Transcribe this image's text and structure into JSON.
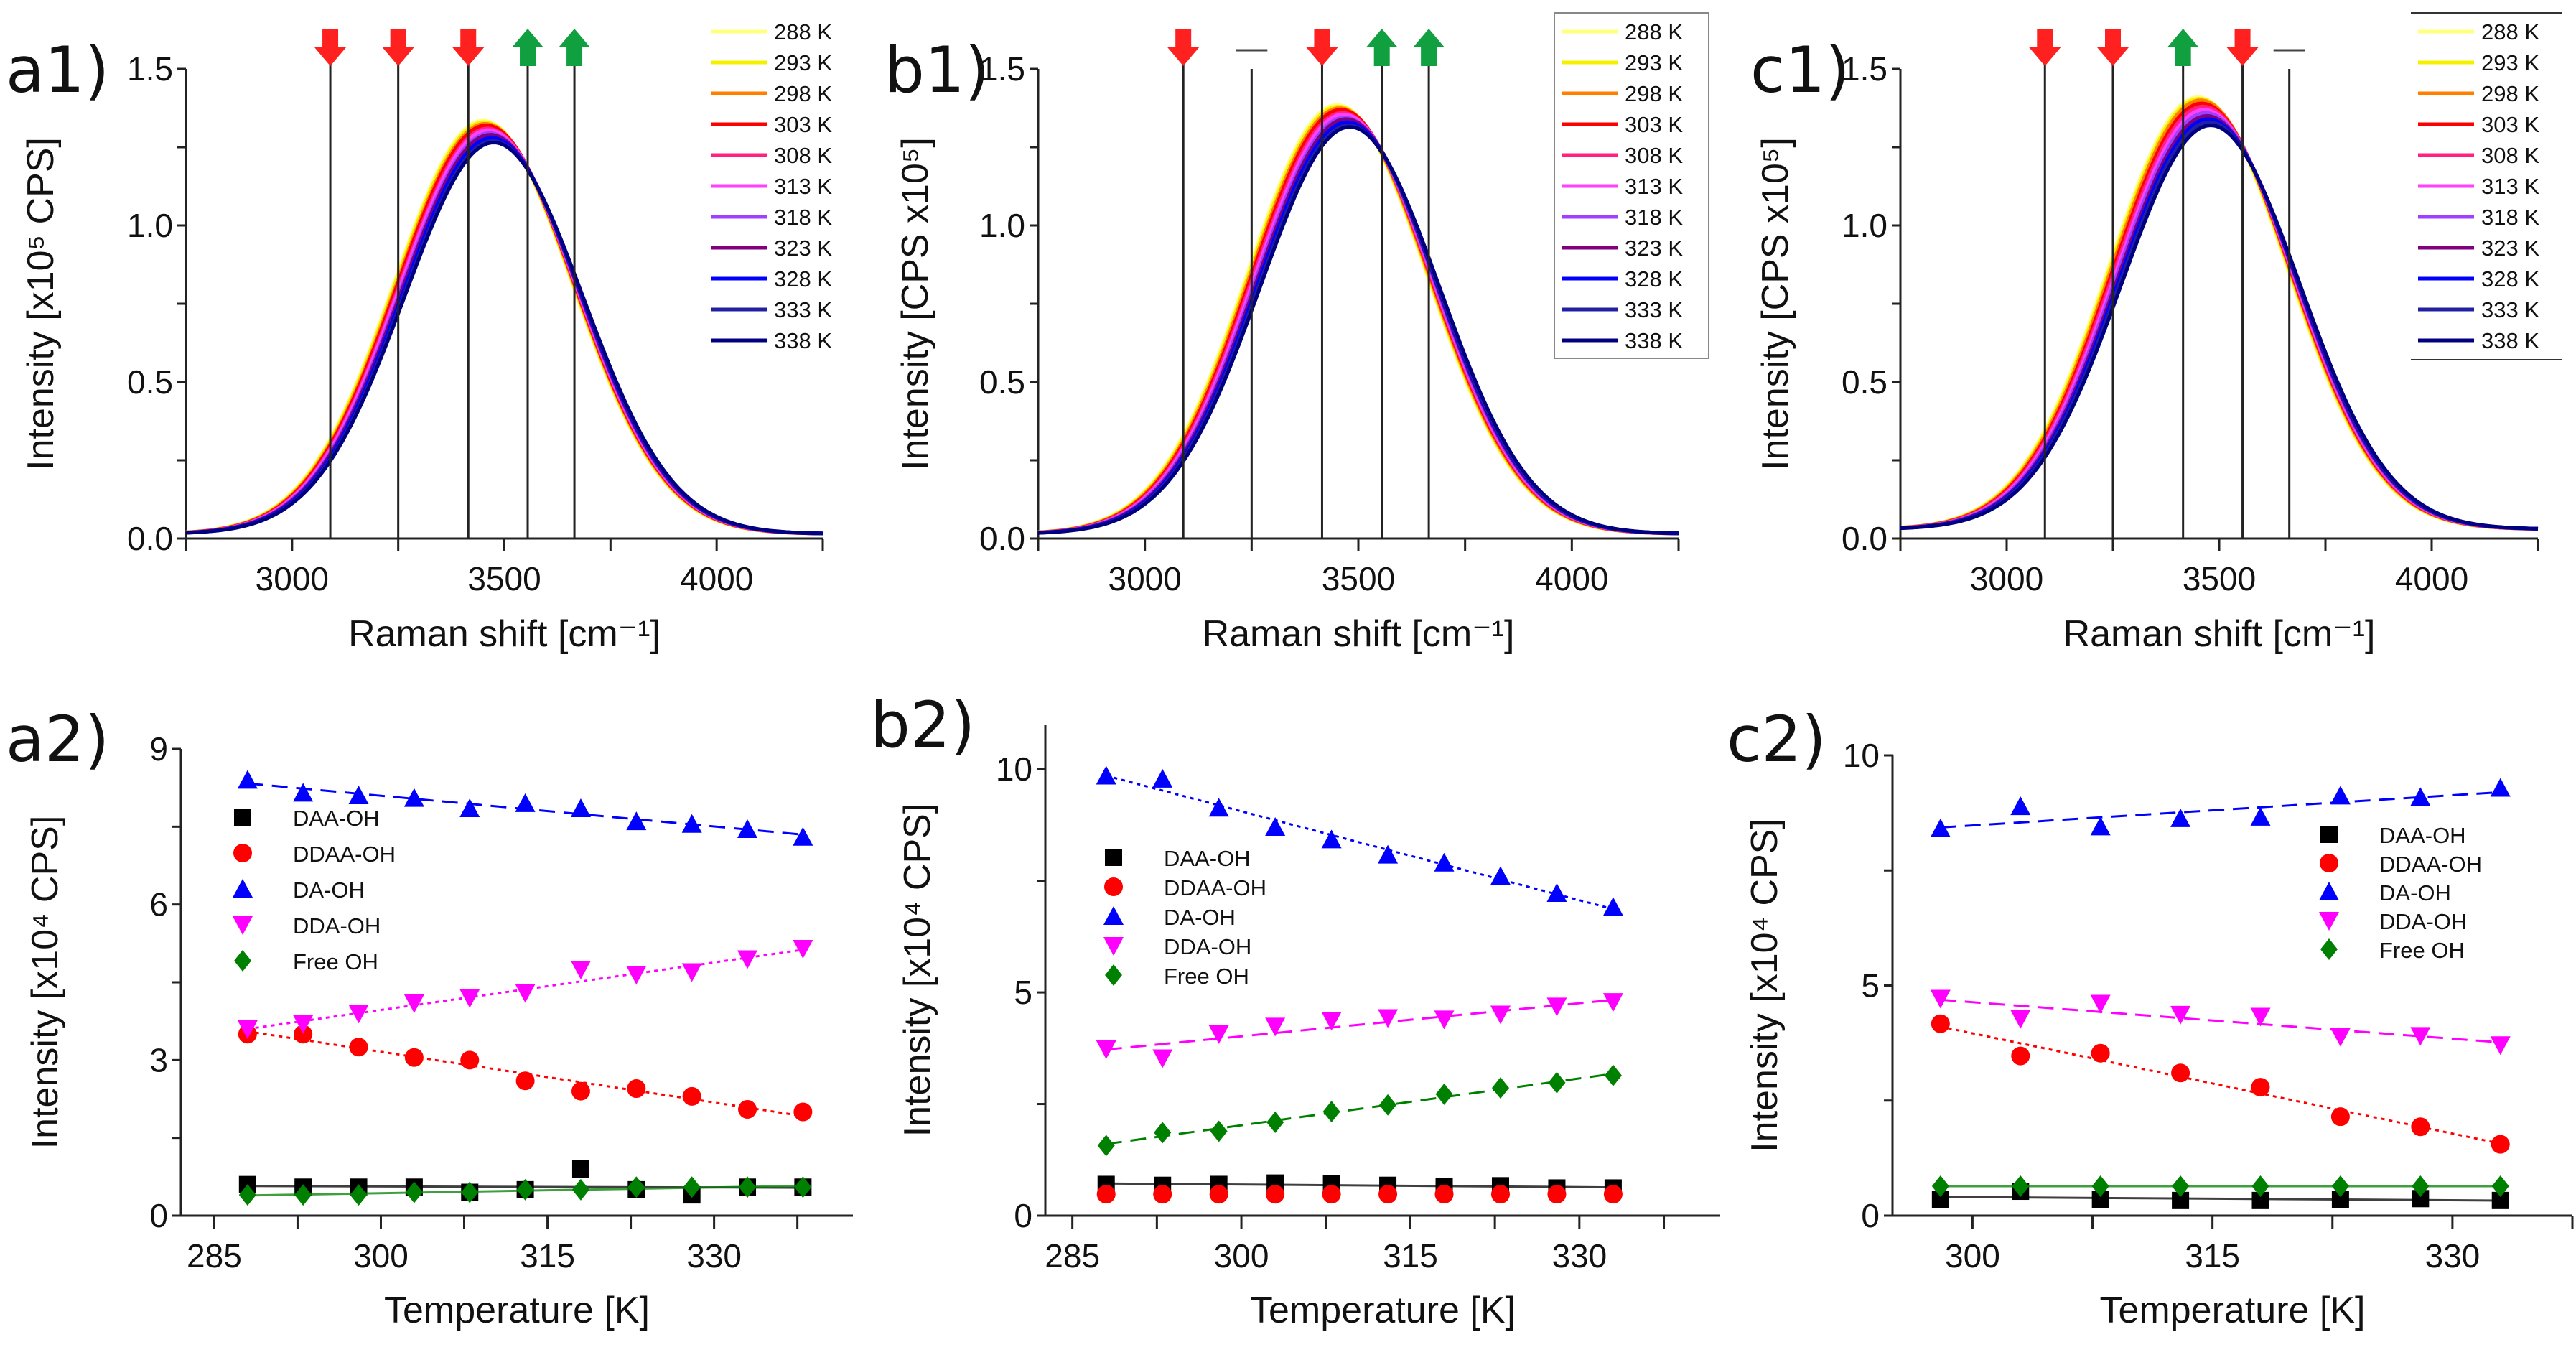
{
  "chart_data": [
    {
      "type": "line",
      "label": "a1)",
      "xlabel": "Raman shift [cm⁻¹]",
      "ylabel": "Intensity [x10⁵ CPS]",
      "xlim": [
        2750,
        4250
      ],
      "ylim": [
        0,
        1.5
      ],
      "xticks": [
        "3000",
        "3500",
        "4000"
      ],
      "yticks": [
        "0.0",
        "0.5",
        "1.0",
        "1.5"
      ],
      "legend_style": "none",
      "band_width": 210,
      "baseline": 0.015,
      "markers": [
        {
          "x": 3090,
          "dir": "down"
        },
        {
          "x": 3250,
          "dir": "down"
        },
        {
          "x": 3415,
          "dir": "down"
        },
        {
          "x": 3555,
          "dir": "up"
        },
        {
          "x": 3665,
          "dir": "up"
        }
      ],
      "series": [
        {
          "name": "288 K",
          "color": "#ffff80",
          "peak_intensity": 1.32,
          "peak_position": 3450
        },
        {
          "name": "293 K",
          "color": "#f5f000",
          "peak_intensity": 1.315,
          "peak_position": 3452
        },
        {
          "name": "298 K",
          "color": "#ff8000",
          "peak_intensity": 1.31,
          "peak_position": 3455
        },
        {
          "name": "303 K",
          "color": "#ff0000",
          "peak_intensity": 1.305,
          "peak_position": 3457
        },
        {
          "name": "308 K",
          "color": "#ff2080",
          "peak_intensity": 1.295,
          "peak_position": 3460
        },
        {
          "name": "313 K",
          "color": "#ff40ff",
          "peak_intensity": 1.29,
          "peak_position": 3462
        },
        {
          "name": "318 K",
          "color": "#a040ff",
          "peak_intensity": 1.28,
          "peak_position": 3465
        },
        {
          "name": "323 K",
          "color": "#800080",
          "peak_intensity": 1.275,
          "peak_position": 3467
        },
        {
          "name": "328 K",
          "color": "#0000ff",
          "peak_intensity": 1.265,
          "peak_position": 3470
        },
        {
          "name": "333 K",
          "color": "#2020a0",
          "peak_intensity": 1.255,
          "peak_position": 3473
        },
        {
          "name": "338 K",
          "color": "#000080",
          "peak_intensity": 1.25,
          "peak_position": 3475
        }
      ]
    },
    {
      "type": "line",
      "label": "b1)",
      "xlabel": "Raman shift [cm⁻¹]",
      "ylabel": "Intensity [CPS x10⁵]",
      "xlim": [
        2750,
        4250
      ],
      "ylim": [
        0,
        1.5
      ],
      "xticks": [
        "3000",
        "3500",
        "4000"
      ],
      "yticks": [
        "0.0",
        "0.5",
        "1.0",
        "1.5"
      ],
      "legend_style": "box",
      "band_width": 210,
      "baseline": 0.015,
      "markers": [
        {
          "x": 3090,
          "dir": "down"
        },
        {
          "x": 3250,
          "dir": "none"
        },
        {
          "x": 3415,
          "dir": "down"
        },
        {
          "x": 3555,
          "dir": "up"
        },
        {
          "x": 3665,
          "dir": "up"
        }
      ],
      "series": [
        {
          "name": "288 K",
          "color": "#ffff80",
          "peak_intensity": 1.37,
          "peak_position": 3450
        },
        {
          "name": "293 K",
          "color": "#f5f000",
          "peak_intensity": 1.365,
          "peak_position": 3453
        },
        {
          "name": "298 K",
          "color": "#ff8000",
          "peak_intensity": 1.36,
          "peak_position": 3456
        },
        {
          "name": "303 K",
          "color": "#ff0000",
          "peak_intensity": 1.355,
          "peak_position": 3459
        },
        {
          "name": "308 K",
          "color": "#ff2080",
          "peak_intensity": 1.345,
          "peak_position": 3462
        },
        {
          "name": "313 K",
          "color": "#ff40ff",
          "peak_intensity": 1.34,
          "peak_position": 3465
        },
        {
          "name": "318 K",
          "color": "#a040ff",
          "peak_intensity": 1.33,
          "peak_position": 3468
        },
        {
          "name": "323 K",
          "color": "#800080",
          "peak_intensity": 1.325,
          "peak_position": 3471
        },
        {
          "name": "328 K",
          "color": "#0000ff",
          "peak_intensity": 1.315,
          "peak_position": 3474
        },
        {
          "name": "333 K",
          "color": "#2020a0",
          "peak_intensity": 1.305,
          "peak_position": 3477
        },
        {
          "name": "338 K",
          "color": "#000080",
          "peak_intensity": 1.3,
          "peak_position": 3480
        }
      ]
    },
    {
      "type": "line",
      "label": "c1)",
      "xlabel": "Raman shift [cm⁻¹]",
      "ylabel": "Intensity [CPS x10⁵]",
      "xlim": [
        2750,
        4250
      ],
      "ylim": [
        0,
        1.5
      ],
      "xticks": [
        "3000",
        "3500",
        "4000"
      ],
      "yticks": [
        "0.0",
        "0.5",
        "1.0",
        "1.5"
      ],
      "legend_style": "rules",
      "band_width": 210,
      "baseline": 0.03,
      "markers": [
        {
          "x": 3090,
          "dir": "down"
        },
        {
          "x": 3250,
          "dir": "down"
        },
        {
          "x": 3415,
          "dir": "up"
        },
        {
          "x": 3555,
          "dir": "down"
        },
        {
          "x": 3665,
          "dir": "none"
        }
      ],
      "series": [
        {
          "name": "288 K",
          "color": "#ffff80",
          "peak_intensity": 1.38,
          "peak_position": 3450
        },
        {
          "name": "293 K",
          "color": "#f5f000",
          "peak_intensity": 1.375,
          "peak_position": 3453
        },
        {
          "name": "298 K",
          "color": "#ff8000",
          "peak_intensity": 1.37,
          "peak_position": 3456
        },
        {
          "name": "303 K",
          "color": "#ff0000",
          "peak_intensity": 1.36,
          "peak_position": 3459
        },
        {
          "name": "308 K",
          "color": "#ff2080",
          "peak_intensity": 1.35,
          "peak_position": 3462
        },
        {
          "name": "313 K",
          "color": "#ff40ff",
          "peak_intensity": 1.34,
          "peak_position": 3465
        },
        {
          "name": "318 K",
          "color": "#a040ff",
          "peak_intensity": 1.33,
          "peak_position": 3468
        },
        {
          "name": "323 K",
          "color": "#800080",
          "peak_intensity": 1.32,
          "peak_position": 3471
        },
        {
          "name": "328 K",
          "color": "#0000ff",
          "peak_intensity": 1.31,
          "peak_position": 3474
        },
        {
          "name": "333 K",
          "color": "#2020a0",
          "peak_intensity": 1.3,
          "peak_position": 3477
        },
        {
          "name": "338 K",
          "color": "#000080",
          "peak_intensity": 1.29,
          "peak_position": 3480
        }
      ]
    },
    {
      "type": "scatter",
      "label": "a2)",
      "xlabel": "Temperature [K]",
      "ylabel": "Intensity [x10⁴ CPS]",
      "xlim": [
        282,
        342.5
      ],
      "ylim": [
        0,
        9
      ],
      "xticks": [
        "285",
        "300",
        "315",
        "330"
      ],
      "yticks": [
        "0",
        "3",
        "6",
        "9"
      ],
      "x": [
        288,
        293,
        298,
        303,
        308,
        313,
        318,
        323,
        328,
        333,
        338
      ],
      "series": [
        {
          "name": "DAA-OH",
          "color": "#000000",
          "marker": "square",
          "fit": "solid",
          "values": [
            0.6,
            0.55,
            0.55,
            0.55,
            0.45,
            0.5,
            0.9,
            0.5,
            0.4,
            0.55,
            0.55
          ]
        },
        {
          "name": "DDAA-OH",
          "color": "#ff0000",
          "marker": "circle",
          "fit": "dotted",
          "values": [
            3.5,
            3.5,
            3.25,
            3.05,
            3.0,
            2.6,
            2.4,
            2.45,
            2.3,
            2.05,
            2.0
          ]
        },
        {
          "name": "DA-OH",
          "color": "#0000ff",
          "marker": "triangle-up",
          "fit": "dashed",
          "values": [
            8.4,
            8.15,
            8.1,
            8.05,
            7.85,
            7.95,
            7.85,
            7.6,
            7.55,
            7.45,
            7.3
          ]
        },
        {
          "name": "DDA-OH",
          "color": "#ff00ff",
          "marker": "triangle-down",
          "fit": "dotted",
          "values": [
            3.6,
            3.7,
            3.9,
            4.1,
            4.2,
            4.3,
            4.75,
            4.65,
            4.7,
            4.95,
            5.15
          ]
        },
        {
          "name": "Free OH",
          "color": "#008000",
          "marker": "diamond",
          "fit": "solid",
          "values": [
            0.4,
            0.4,
            0.4,
            0.45,
            0.45,
            0.5,
            0.5,
            0.55,
            0.55,
            0.55,
            0.55
          ]
        }
      ]
    },
    {
      "type": "scatter",
      "label": "b2)",
      "xlabel": "Temperature [K]",
      "ylabel": "Intensity [x10⁴ CPS]",
      "xlim": [
        282.6,
        342.5
      ],
      "ylim": [
        0,
        11
      ],
      "xticks": [
        "285",
        "300",
        "315",
        "330"
      ],
      "yticks": [
        "0",
        "5",
        "10"
      ],
      "x": [
        288,
        293,
        298,
        303,
        308,
        313,
        318,
        323,
        328,
        333
      ],
      "series": [
        {
          "name": "DAA-OH",
          "color": "#000000",
          "marker": "square",
          "fit": "solid",
          "values": [
            0.7,
            0.68,
            0.7,
            0.73,
            0.72,
            0.68,
            0.65,
            0.67,
            0.62,
            0.62
          ]
        },
        {
          "name": "DDAA-OH",
          "color": "#ff0000",
          "marker": "circle",
          "fit": "none",
          "values": [
            0.48,
            0.48,
            0.48,
            0.48,
            0.48,
            0.48,
            0.48,
            0.48,
            0.48,
            0.48
          ]
        },
        {
          "name": "DA-OH",
          "color": "#0000ff",
          "marker": "triangle-up",
          "fit": "dotted",
          "values": [
            9.85,
            9.78,
            9.13,
            8.7,
            8.42,
            8.08,
            7.9,
            7.6,
            7.22,
            6.91
          ]
        },
        {
          "name": "DDA-OH",
          "color": "#ff00ff",
          "marker": "triangle-down",
          "fit": "dashed",
          "values": [
            3.73,
            3.53,
            4.07,
            4.24,
            4.37,
            4.43,
            4.4,
            4.51,
            4.69,
            4.79
          ]
        },
        {
          "name": "Free OH",
          "color": "#008000",
          "marker": "diamond",
          "fit": "dashed",
          "values": [
            1.57,
            1.86,
            1.89,
            2.09,
            2.33,
            2.48,
            2.72,
            2.86,
            2.98,
            3.14
          ]
        }
      ]
    },
    {
      "type": "scatter",
      "label": "c2)",
      "xlabel": "Temperature [K]",
      "ylabel": "Intensity [x10⁴ CPS]",
      "xlim": [
        295,
        337.5
      ],
      "ylim": [
        0,
        10
      ],
      "xticks": [
        "300",
        "315",
        "330"
      ],
      "yticks": [
        "0",
        "5",
        "10"
      ],
      "x": [
        298,
        303,
        308,
        313,
        318,
        323,
        328,
        333
      ],
      "series": [
        {
          "name": "DAA-OH",
          "color": "#000000",
          "marker": "square",
          "fit": "solid",
          "values": [
            0.35,
            0.53,
            0.35,
            0.33,
            0.33,
            0.35,
            0.37,
            0.33
          ]
        },
        {
          "name": "DDAA-OH",
          "color": "#ff0000",
          "marker": "circle",
          "fit": "dotted",
          "values": [
            4.17,
            3.47,
            3.53,
            3.1,
            2.79,
            2.15,
            1.93,
            1.55
          ]
        },
        {
          "name": "DA-OH",
          "color": "#0000ff",
          "marker": "triangle-up",
          "fit": "dashed",
          "values": [
            8.41,
            8.89,
            8.45,
            8.63,
            8.66,
            9.12,
            9.09,
            9.29
          ]
        },
        {
          "name": "DDA-OH",
          "color": "#ff00ff",
          "marker": "triangle-down",
          "fit": "dashed",
          "values": [
            4.72,
            4.28,
            4.61,
            4.37,
            4.33,
            3.89,
            3.91,
            3.71
          ]
        },
        {
          "name": "Free OH",
          "color": "#008000",
          "marker": "diamond",
          "fit": "solid",
          "values": [
            0.64,
            0.64,
            0.64,
            0.64,
            0.64,
            0.64,
            0.64,
            0.64
          ]
        }
      ]
    }
  ]
}
